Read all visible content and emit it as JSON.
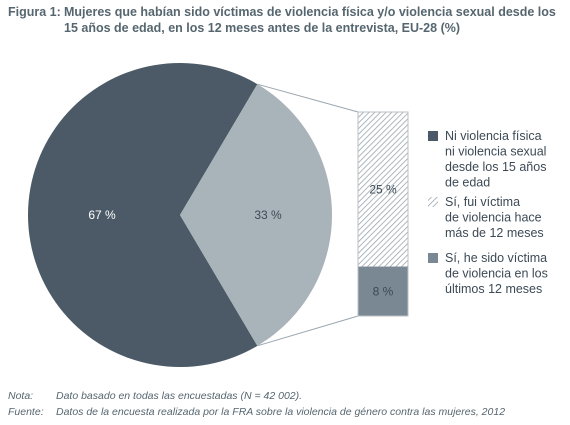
{
  "figure": {
    "number": "Figura 1:",
    "title": "Mujeres que habían sido víctimas de violencia física y/o violencia sexual desde los 15 años de edad, en los 12 meses antes de la entrevista, EU-28 (%)"
  },
  "chart_data": [
    {
      "type": "pie",
      "slices": [
        {
          "label": "67 %",
          "value": 67,
          "color": "#4b5a66"
        },
        {
          "label": "33 %",
          "value": 33,
          "color": "#a9b3ba"
        }
      ]
    },
    {
      "type": "bar",
      "stacked": true,
      "segments": [
        {
          "label": "25 %",
          "value": 25,
          "fill": "hatched"
        },
        {
          "label": "8 %",
          "value": 8,
          "color": "#7a8893"
        }
      ]
    }
  ],
  "legend": [
    {
      "text_lines": [
        "Ni violencia física",
        "ni violencia sexual",
        "desde los 15 años",
        "de edad"
      ],
      "swatch": "solid",
      "color": "#4b5a66"
    },
    {
      "text_lines": [
        "Sí, fui víctima",
        "de violencia hace",
        "más de 12 meses"
      ],
      "swatch": "hatched",
      "color": "#9aa5ad"
    },
    {
      "text_lines": [
        "Sí, he sido víctima",
        "de violencia en los",
        "últimos 12 meses"
      ],
      "swatch": "solid",
      "color": "#7a8893"
    }
  ],
  "notes": [
    {
      "key": "Nota:",
      "value": "Dato basado en todas las encuestadas (N = 42 002)."
    },
    {
      "key": "Fuente:",
      "value": "Datos de la encuesta realizada por la FRA sobre la violencia de género contra las mujeres, 2012"
    }
  ]
}
